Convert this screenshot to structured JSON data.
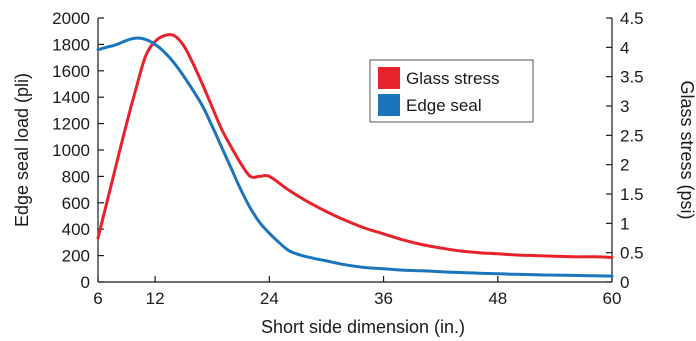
{
  "chart_data": {
    "type": "line",
    "xlabel": "Short side dimension (in.)",
    "ylabel_left": "Edge seal load (pli)",
    "ylabel_right": "Glass stress (psi)",
    "x_ticks": [
      "6",
      "12",
      "24",
      "36",
      "48",
      "60"
    ],
    "x_tick_values": [
      6,
      12,
      24,
      36,
      48,
      60
    ],
    "xlim": [
      6,
      60
    ],
    "y_left_ticks": [
      "0",
      "200",
      "400",
      "600",
      "800",
      "1000",
      "1200",
      "1400",
      "1600",
      "1800",
      "2000"
    ],
    "y_left_tick_values": [
      0,
      200,
      400,
      600,
      800,
      1000,
      1200,
      1400,
      1600,
      1800,
      2000
    ],
    "ylim_left": [
      0,
      2000
    ],
    "y_right_ticks": [
      "0",
      "0.5",
      "1",
      "1.5",
      "2",
      "2.5",
      "3",
      "3.5",
      "4",
      "4.5"
    ],
    "y_right_tick_values": [
      0,
      0.5,
      1,
      1.5,
      2,
      2.5,
      3,
      3.5,
      4,
      4.5
    ],
    "ylim_right": [
      0,
      4.5
    ],
    "grid": false,
    "legend_position": "upper-right",
    "series": [
      {
        "name": "Glass stress",
        "axis": "right",
        "color": "#e8222a",
        "x": [
          6,
          7,
          8,
          9,
          10,
          11,
          12,
          13,
          14,
          15,
          16,
          17,
          18,
          19,
          20,
          21,
          22,
          23,
          24,
          26,
          28,
          30,
          32,
          34,
          36,
          38,
          40,
          42,
          44,
          46,
          48,
          50,
          52,
          54,
          56,
          58,
          60
        ],
        "values": [
          0.75,
          1.4,
          2.05,
          2.7,
          3.3,
          3.85,
          4.1,
          4.2,
          4.2,
          4.03,
          3.72,
          3.36,
          2.98,
          2.6,
          2.3,
          2.02,
          1.8,
          1.8,
          1.8,
          1.57,
          1.37,
          1.2,
          1.05,
          0.92,
          0.82,
          0.72,
          0.64,
          0.58,
          0.53,
          0.5,
          0.48,
          0.46,
          0.45,
          0.44,
          0.43,
          0.43,
          0.42
        ]
      },
      {
        "name": "Edge seal",
        "axis": "left",
        "color": "#1a75bc",
        "x": [
          6,
          7,
          8,
          9,
          10,
          11,
          12,
          13,
          14,
          15,
          16,
          17,
          18,
          19,
          20,
          21,
          22,
          23,
          24,
          25,
          26,
          27,
          28,
          30,
          32,
          34,
          36,
          38,
          40,
          42,
          44,
          46,
          48,
          50,
          52,
          54,
          56,
          58,
          60
        ],
        "values": [
          1760,
          1780,
          1800,
          1830,
          1848,
          1838,
          1800,
          1740,
          1660,
          1560,
          1450,
          1330,
          1180,
          1020,
          860,
          700,
          560,
          450,
          370,
          300,
          240,
          210,
          190,
          160,
          130,
          110,
          100,
          90,
          85,
          78,
          72,
          67,
          62,
          58,
          55,
          52,
          50,
          47,
          45
        ]
      }
    ]
  }
}
